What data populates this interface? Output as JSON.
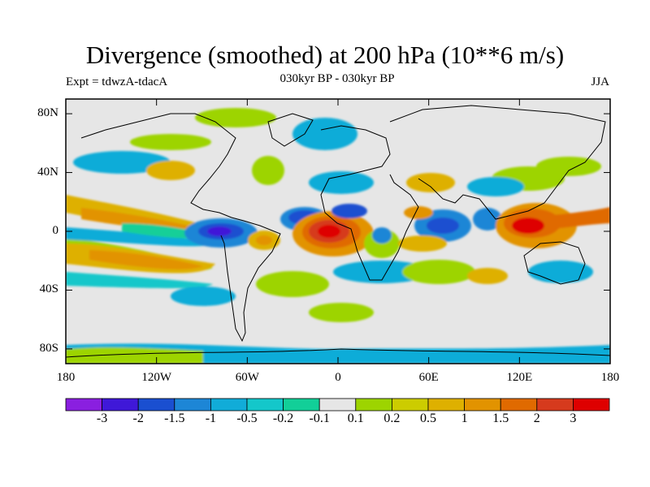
{
  "header": {
    "title": "Divergence (smoothed) at 200 hPa (10**6 m/s)",
    "experiment": "Expt = tdwzA-tdacA",
    "period": "030kyr BP - 030kyr BP",
    "season": "JJA"
  },
  "map": {
    "projection": "cylindrical equidistant",
    "lat_ticks": [
      {
        "value": 80,
        "label": "80N"
      },
      {
        "value": 40,
        "label": "40N"
      },
      {
        "value": 0,
        "label": "0"
      },
      {
        "value": -40,
        "label": "40S"
      },
      {
        "value": -80,
        "label": "80S"
      }
    ],
    "lon_ticks": [
      {
        "value": -180,
        "label": "180"
      },
      {
        "value": -120,
        "label": "120W"
      },
      {
        "value": -60,
        "label": "60W"
      },
      {
        "value": 0,
        "label": "0"
      },
      {
        "value": 60,
        "label": "60E"
      },
      {
        "value": 120,
        "label": "120E"
      },
      {
        "value": 180,
        "label": "180"
      }
    ],
    "neutral_color": "#e6e6e6",
    "features": [
      {
        "name": "strong-convergence-central-equatorial-atlantic",
        "lon": -5,
        "lat": -1,
        "value": 3
      },
      {
        "name": "convergence-maritime-continent",
        "lon": 130,
        "lat": -2,
        "value": 2
      },
      {
        "name": "divergence-low-south-america-west",
        "lon": -75,
        "lat": -2,
        "value": -2
      },
      {
        "name": "divergence-low-central-atlantic",
        "lon": -22,
        "lat": 6,
        "value": -2
      },
      {
        "name": "divergence-low-indian-ocean",
        "lon": 68,
        "lat": 2,
        "value": -1.5
      },
      {
        "name": "divergence-low-equatorial-africa",
        "lon": 12,
        "lat": 8,
        "value": -1.5
      },
      {
        "name": "convergence-band-south-pacific",
        "lon": -130,
        "lat": -28,
        "value": 1
      },
      {
        "name": "convergence-band-north-pacific-east",
        "lon": -130,
        "lat": 8,
        "value": 1
      },
      {
        "name": "convergence-north-south-america",
        "lon": -45,
        "lat": -12,
        "value": 1
      }
    ]
  },
  "colorbar": {
    "colors": [
      "#8a1fe0",
      "#3f18d8",
      "#1a4fd0",
      "#1d86d6",
      "#11acd8",
      "#14c7ca",
      "#12cf98",
      "#e6e6e6",
      "#9dd400",
      "#cccc00",
      "#deb000",
      "#e29300",
      "#e06a00",
      "#d63a1d",
      "#de0000"
    ],
    "labels": [
      "-3",
      "-2",
      "-1.5",
      "-1",
      "-0.5",
      "-0.2",
      "-0.1",
      "0.1",
      "0.2",
      "0.5",
      "1",
      "1.5",
      "2",
      "3"
    ]
  }
}
